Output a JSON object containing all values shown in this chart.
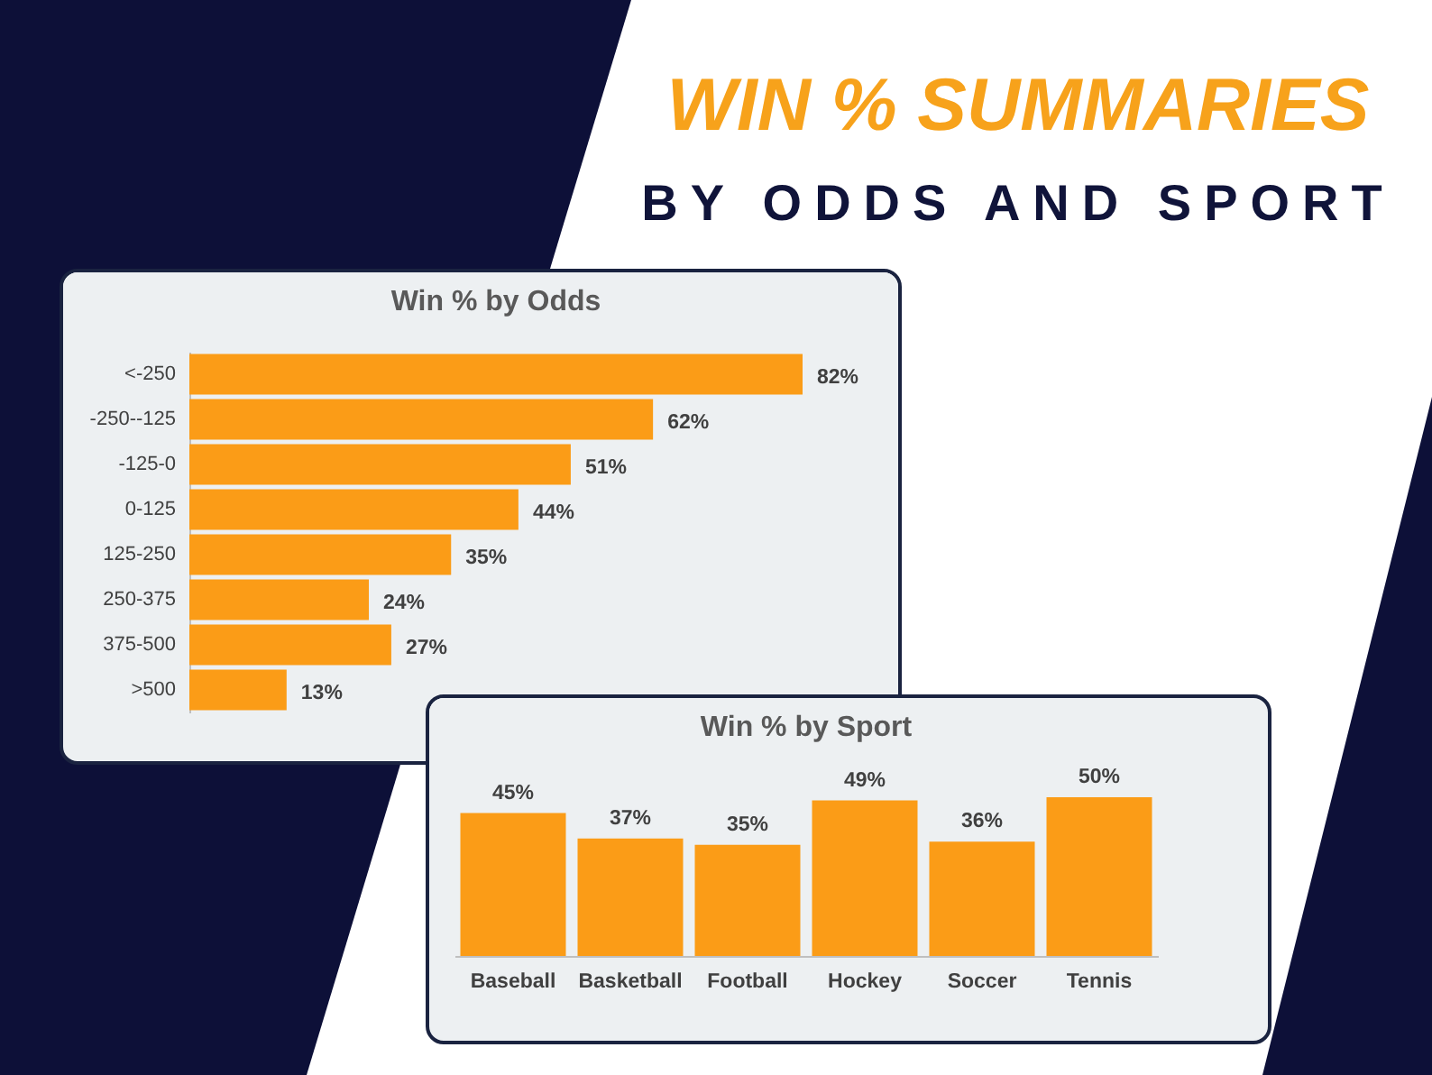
{
  "chart_data": [
    {
      "type": "other",
      "title": "WIN % SUMMARIES",
      "subtitle": "BY ODDS AND SPORT"
    },
    {
      "type": "bar",
      "title": "Win % by Odds",
      "orientation": "horizontal",
      "categories": [
        "<-250",
        "-250--125",
        "-125-0",
        "0-125",
        "125-250",
        "250-375",
        "375-500",
        ">500"
      ],
      "color": "#fb9c17",
      "values": [
        82,
        62,
        51,
        44,
        35,
        24,
        27,
        13
      ],
      "value_labels": [
        "82%",
        "62%",
        "51%",
        "44%",
        "35%",
        "24%",
        "27%",
        "13%"
      ]
    },
    {
      "type": "bar",
      "title": "Win % by Sport",
      "categories": [
        "Baseball",
        "Basketball",
        "Football",
        "Hockey",
        "Soccer",
        "Tennis"
      ],
      "color": "#fb9c17",
      "values": [
        45,
        37,
        35,
        49,
        36,
        50
      ],
      "value_labels": [
        "45%",
        "37%",
        "35%",
        "49%",
        "36%",
        "50%"
      ]
    }
  ]
}
